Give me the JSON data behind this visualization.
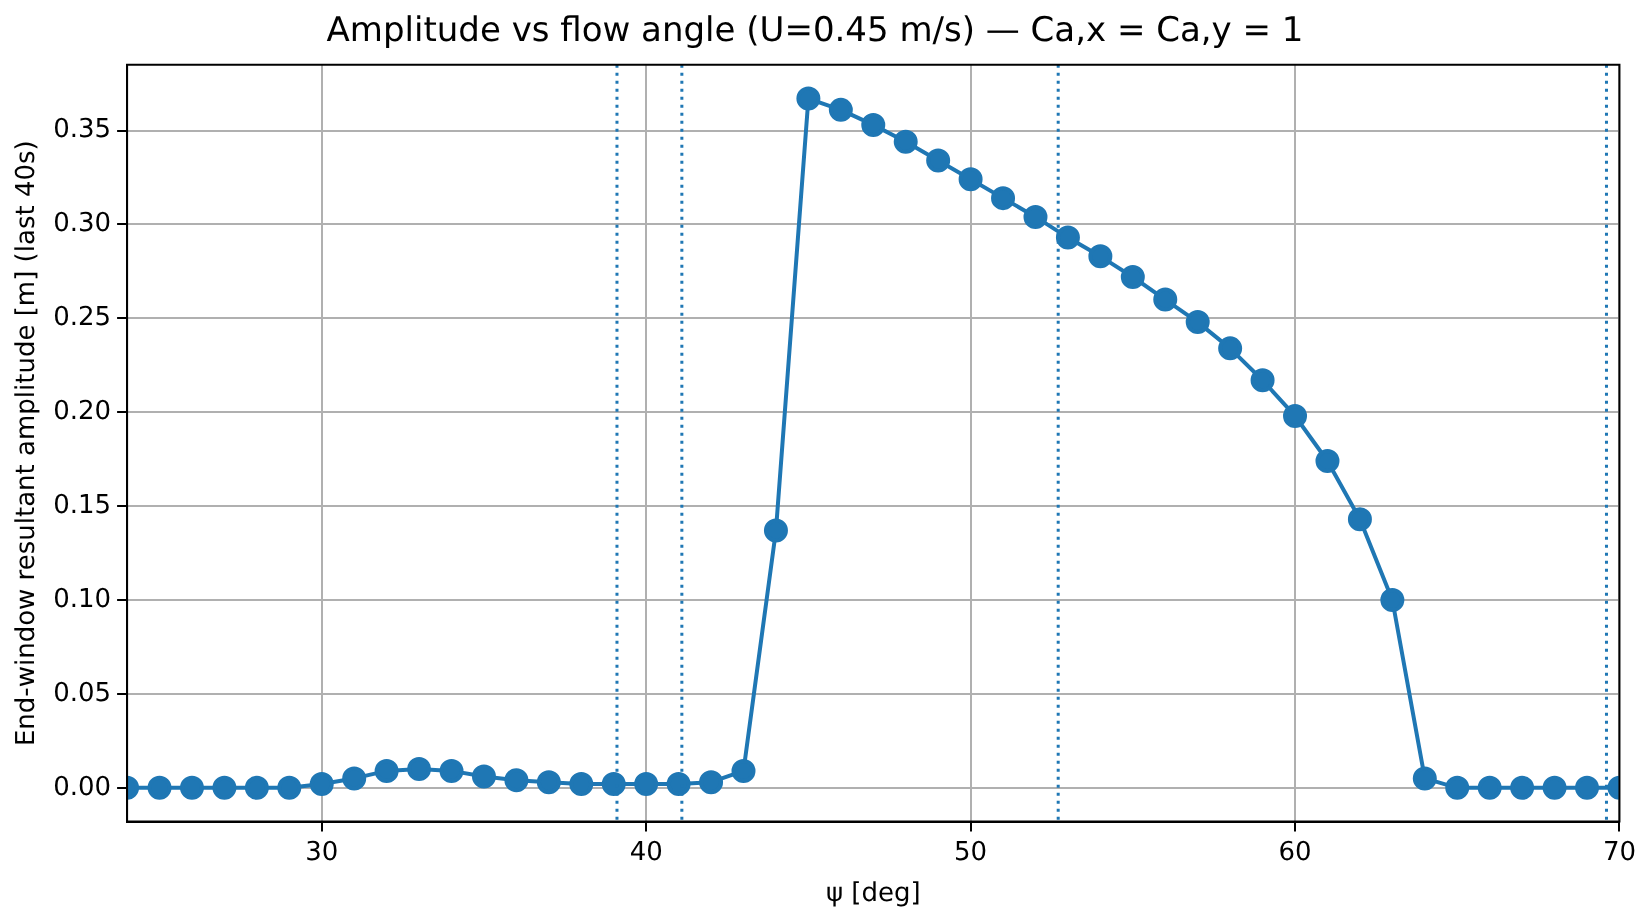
{
  "chart_data": {
    "type": "line",
    "title": "Amplitude vs flow angle (U=0.45 m/s) — Ca,x = Ca,y = 1",
    "xlabel": "ψ [deg]",
    "ylabel": "End-window resultant amplitude [m] (last 40s)",
    "x": [
      24,
      25,
      26,
      27,
      28,
      29,
      30,
      31,
      32,
      33,
      34,
      35,
      36,
      37,
      38,
      39,
      40,
      41,
      42,
      43,
      44,
      45,
      46,
      47,
      48,
      49,
      50,
      51,
      52,
      53,
      54,
      55,
      56,
      57,
      58,
      59,
      60,
      61,
      62,
      63,
      64,
      65,
      66,
      67,
      68,
      69,
      70
    ],
    "series": [
      {
        "color": "#1f77b4",
        "values": [
          0,
          0,
          0,
          0,
          0,
          0,
          0.002,
          0.005,
          0.009,
          0.01,
          0.009,
          0.006,
          0.004,
          0.003,
          0.002,
          0.002,
          0.002,
          0.002,
          0.003,
          0.009,
          0.137,
          0.367,
          0.361,
          0.353,
          0.344,
          0.334,
          0.324,
          0.314,
          0.304,
          0.293,
          0.283,
          0.272,
          0.26,
          0.248,
          0.234,
          0.217,
          0.198,
          0.174,
          0.143,
          0.1,
          0.005,
          0,
          0,
          0,
          0,
          0,
          0
        ]
      }
    ],
    "xlim": [
      24,
      70
    ],
    "xticks": [
      30,
      40,
      50,
      60,
      70
    ],
    "ylim": [
      -0.018,
      0.385
    ],
    "yticks": [
      {
        "value": 0,
        "label": "0.00"
      },
      {
        "value": 0.05,
        "label": "0.05"
      },
      {
        "value": 0.1,
        "label": "0.10"
      },
      {
        "value": 0.15,
        "label": "0.15"
      },
      {
        "value": 0.2,
        "label": "0.20"
      },
      {
        "value": 0.25,
        "label": "0.25"
      },
      {
        "value": 0.3,
        "label": "0.30"
      },
      {
        "value": 0.35,
        "label": "0.35"
      }
    ],
    "ref_lines": [
      {
        "axis": "x",
        "value": 39.1,
        "color": "#1f77b4",
        "line_style": "dotted"
      },
      {
        "axis": "x",
        "value": 41.1,
        "color": "#1f77b4",
        "line_style": "dotted"
      },
      {
        "axis": "x",
        "value": 52.7,
        "color": "#1f77b4",
        "line_style": "dotted"
      },
      {
        "axis": "x",
        "value": 69.6,
        "color": "#1f77b4",
        "line_style": "dotted"
      }
    ],
    "grid": true,
    "legend": false,
    "marker": "circle",
    "line_style": "solid"
  }
}
